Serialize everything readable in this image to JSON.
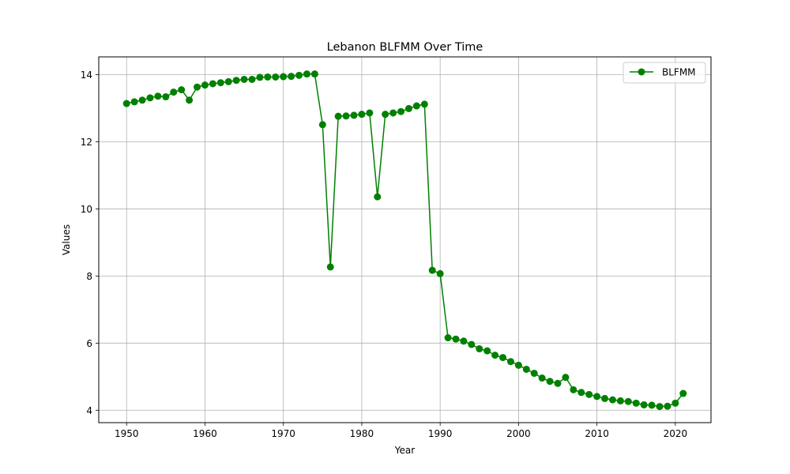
{
  "chart_data": {
    "type": "line",
    "title": "Lebanon BLFMM Over Time",
    "xlabel": "Year",
    "ylabel": "Values",
    "xlim": [
      1946.45,
      2024.55
    ],
    "ylim": [
      3.63,
      14.53
    ],
    "xticks": [
      1950,
      1960,
      1970,
      1980,
      1990,
      2000,
      2010,
      2020
    ],
    "yticks": [
      4,
      6,
      8,
      10,
      12,
      14
    ],
    "grid": true,
    "legend_position": "top-right",
    "series": [
      {
        "name": "BLFMM",
        "color": "#008000",
        "marker": "circle",
        "x": [
          1950,
          1951,
          1952,
          1953,
          1954,
          1955,
          1956,
          1957,
          1958,
          1959,
          1960,
          1961,
          1962,
          1963,
          1964,
          1965,
          1966,
          1967,
          1968,
          1969,
          1970,
          1971,
          1972,
          1973,
          1974,
          1975,
          1976,
          1977,
          1978,
          1979,
          1980,
          1981,
          1982,
          1983,
          1984,
          1985,
          1986,
          1987,
          1988,
          1989,
          1990,
          1991,
          1992,
          1993,
          1994,
          1995,
          1996,
          1997,
          1998,
          1999,
          2000,
          2001,
          2002,
          2003,
          2004,
          2005,
          2006,
          2007,
          2008,
          2009,
          2010,
          2011,
          2012,
          2013,
          2014,
          2015,
          2016,
          2017,
          2018,
          2019,
          2020,
          2021
        ],
        "y": [
          13.14,
          13.19,
          13.24,
          13.31,
          13.36,
          13.34,
          13.48,
          13.55,
          13.24,
          13.63,
          13.69,
          13.73,
          13.76,
          13.79,
          13.83,
          13.86,
          13.86,
          13.92,
          13.93,
          13.93,
          13.94,
          13.95,
          13.98,
          14.02,
          14.02,
          12.51,
          8.27,
          12.76,
          12.77,
          12.79,
          12.82,
          12.86,
          10.36,
          12.82,
          12.86,
          12.9,
          12.99,
          13.07,
          13.12,
          8.17,
          8.07,
          6.16,
          6.12,
          6.06,
          5.96,
          5.83,
          5.77,
          5.64,
          5.57,
          5.45,
          5.34,
          5.22,
          5.1,
          4.96,
          4.86,
          4.8,
          4.98,
          4.61,
          4.53,
          4.47,
          4.41,
          4.35,
          4.31,
          4.28,
          4.26,
          4.21,
          4.16,
          4.15,
          4.11,
          4.12,
          4.21,
          4.5
        ]
      }
    ]
  }
}
